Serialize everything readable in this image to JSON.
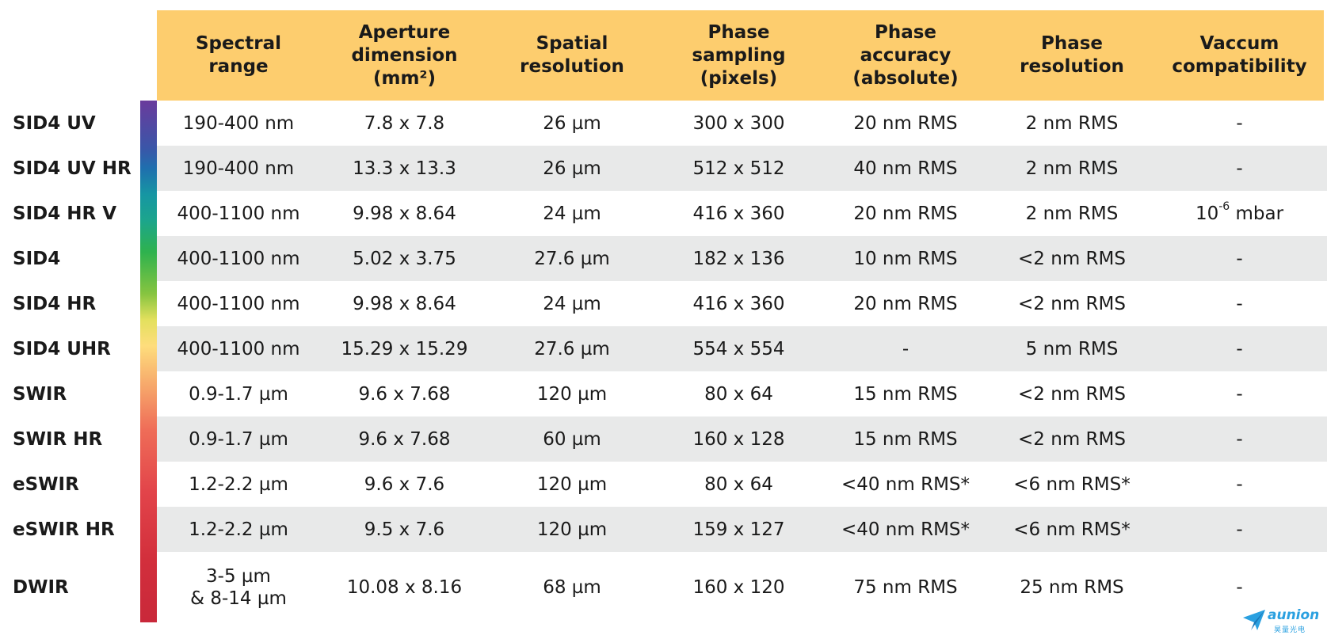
{
  "header": {
    "columns": [
      "Spectral\nrange",
      "Aperture\ndimension\n(mm²)",
      "Spatial\nresolution",
      "Phase\nsampling\n(pixels)",
      "Phase\naccuracy\n(absolute)",
      "Phase\nresolution",
      "Vaccum\ncompatibility"
    ]
  },
  "rows": [
    {
      "name": "SID4 UV",
      "cells": [
        "190-400 nm",
        "7.8 x 7.8",
        "26 µm",
        "300 x 300",
        "20 nm RMS",
        "2 nm RMS",
        "-"
      ]
    },
    {
      "name": "SID4 UV HR",
      "cells": [
        "190-400 nm",
        "13.3 x 13.3",
        "26 µm",
        "512 x 512",
        "40 nm RMS",
        "2 nm RMS",
        "-"
      ]
    },
    {
      "name": "SID4 HR V",
      "cells": [
        "400-1100 nm",
        "9.98 x 8.64",
        "24 µm",
        "416 x 360",
        "20 nm RMS",
        "2 nm RMS",
        ""
      ]
    },
    {
      "name": "SID4",
      "cells": [
        "400-1100 nm",
        "5.02 x 3.75",
        "27.6 µm",
        "182 x 136",
        "10 nm RMS",
        "<2 nm RMS",
        "-"
      ]
    },
    {
      "name": "SID4 HR",
      "cells": [
        "400-1100 nm",
        "9.98 x 8.64",
        "24 µm",
        "416 x 360",
        "20 nm RMS",
        "<2 nm RMS",
        "-"
      ]
    },
    {
      "name": "SID4 UHR",
      "cells": [
        "400-1100 nm",
        "15.29 x 15.29",
        "27.6 µm",
        "554 x 554",
        "-",
        "5 nm RMS",
        "-"
      ]
    },
    {
      "name": "SWIR",
      "cells": [
        "0.9-1.7 µm",
        "9.6 x 7.68",
        "120 µm",
        "80 x 64",
        "15 nm RMS",
        "<2 nm RMS",
        "-"
      ]
    },
    {
      "name": "SWIR HR",
      "cells": [
        "0.9-1.7 µm",
        "9.6 x 7.68",
        "60 µm",
        "160 x 128",
        "15 nm RMS",
        "<2 nm RMS",
        "-"
      ]
    },
    {
      "name": "eSWIR",
      "cells": [
        "1.2-2.2 µm",
        "9.6 x 7.6",
        "120 µm",
        "80 x 64",
        "<40 nm RMS*",
        "<6 nm RMS*",
        "-"
      ]
    },
    {
      "name": "eSWIR HR",
      "cells": [
        "1.2-2.2 µm",
        "9.5 x 7.6",
        "120 µm",
        "159 x 127",
        "<40 nm RMS*",
        "<6 nm RMS*",
        "-"
      ]
    },
    {
      "name": "DWIR",
      "cells": [
        "3-5 µm\n& 8-14 µm",
        "10.08 x 8.16",
        "68 µm",
        "160 x 120",
        "75 nm RMS",
        "25 nm RMS",
        "-"
      ]
    }
  ],
  "vacuum_special": {
    "base": "10",
    "exponent": "-6",
    "unit": " mbar"
  },
  "logo": {
    "text": "aunion",
    "subtext": "昊量光电"
  },
  "colors": {
    "header_bg": "#fdcd6e",
    "row_shade": "#e8e9e9",
    "logo": "#2aa0e0"
  }
}
